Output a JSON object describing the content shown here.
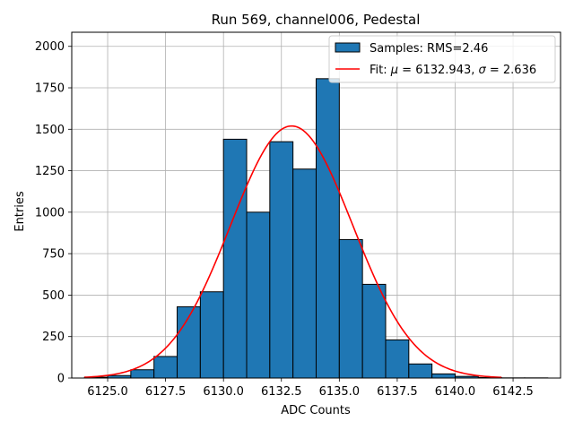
{
  "chart_data": {
    "type": "bar",
    "title": "Run 569, channel006, Pedestal",
    "xlabel": "ADC Counts",
    "ylabel": "Entries",
    "xlim": [
      6123.45,
      6144.55
    ],
    "ylim": [
      0,
      2085
    ],
    "xticks": [
      6125.0,
      6127.5,
      6130.0,
      6132.5,
      6135.0,
      6137.5,
      6140.0,
      6142.5
    ],
    "xtick_labels": [
      "6125.0",
      "6127.5",
      "6130.0",
      "6132.5",
      "6135.0",
      "6137.5",
      "6140.0",
      "6142.5"
    ],
    "yticks": [
      0,
      250,
      500,
      750,
      1000,
      1250,
      1500,
      1750,
      2000
    ],
    "ytick_labels": [
      "0",
      "250",
      "500",
      "750",
      "1000",
      "1250",
      "1500",
      "1750",
      "2000"
    ],
    "grid": true,
    "legend_position": "top-right",
    "histogram": {
      "name": "Samples: RMS=2.46",
      "color": "#1f77b4",
      "edge_color": "#000000",
      "bins": [
        {
          "x0": 6124.0,
          "x1": 6125.0,
          "value": 5
        },
        {
          "x0": 6125.0,
          "x1": 6126.0,
          "value": 15
        },
        {
          "x0": 6126.0,
          "x1": 6127.0,
          "value": 50
        },
        {
          "x0": 6127.0,
          "x1": 6128.0,
          "value": 130
        },
        {
          "x0": 6128.0,
          "x1": 6129.0,
          "value": 430
        },
        {
          "x0": 6129.0,
          "x1": 6130.0,
          "value": 520
        },
        {
          "x0": 6130.0,
          "x1": 6131.0,
          "value": 1440
        },
        {
          "x0": 6131.0,
          "x1": 6132.0,
          "value": 1000
        },
        {
          "x0": 6132.0,
          "x1": 6133.0,
          "value": 1425
        },
        {
          "x0": 6133.0,
          "x1": 6134.0,
          "value": 1260
        },
        {
          "x0": 6134.0,
          "x1": 6135.0,
          "value": 1805
        },
        {
          "x0": 6135.0,
          "x1": 6136.0,
          "value": 835
        },
        {
          "x0": 6136.0,
          "x1": 6137.0,
          "value": 565
        },
        {
          "x0": 6137.0,
          "x1": 6138.0,
          "value": 230
        },
        {
          "x0": 6138.0,
          "x1": 6139.0,
          "value": 85
        },
        {
          "x0": 6139.0,
          "x1": 6140.0,
          "value": 25
        },
        {
          "x0": 6140.0,
          "x1": 6141.0,
          "value": 10
        },
        {
          "x0": 6141.0,
          "x1": 6142.0,
          "value": 3
        },
        {
          "x0": 6142.0,
          "x1": 6143.0,
          "value": 1
        },
        {
          "x0": 6143.0,
          "x1": 6144.0,
          "value": 1
        }
      ]
    },
    "fit": {
      "name_prefix": "Fit: ",
      "name_mu": "μ",
      "name_mid": " = 6132.943, ",
      "name_sigma": "σ",
      "name_suffix": " = 2.636",
      "color": "#ff0000",
      "mu": 6132.943,
      "sigma": 2.636,
      "amplitude": 1520,
      "x_range": [
        6124.0,
        6142.0
      ]
    }
  }
}
